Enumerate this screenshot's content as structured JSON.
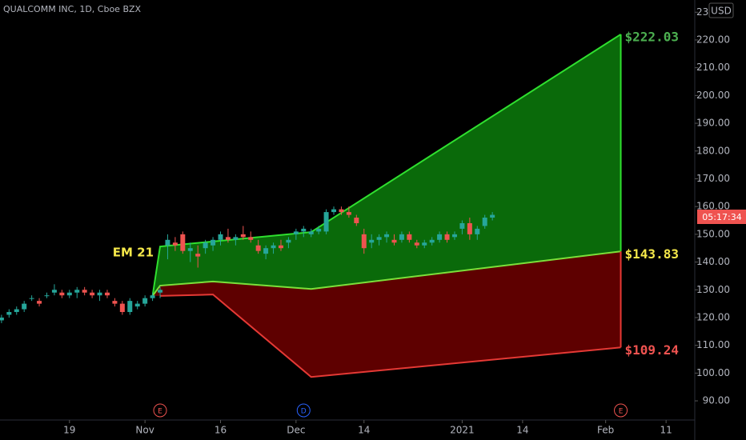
{
  "header": {
    "symbol": "QUALCOMM INC, 1D, Cboe BZX",
    "currency": "USD",
    "countdown": "05:17:34"
  },
  "chart_data": {
    "type": "candlestick",
    "x": [
      -9,
      -8,
      -7,
      -6,
      -5,
      -4,
      -3,
      -2,
      -1,
      0,
      1,
      2,
      3,
      4,
      5,
      6,
      7,
      8,
      9,
      10,
      11,
      12,
      13,
      14,
      15,
      16,
      17,
      18,
      19,
      20,
      21,
      22,
      23,
      24,
      25,
      26,
      27,
      28,
      29,
      30,
      31,
      32,
      33,
      34,
      35,
      36,
      37,
      38,
      39,
      40,
      41,
      42,
      43,
      44,
      45,
      46,
      47,
      48,
      49,
      50,
      51,
      52,
      53,
      54,
      55,
      56
    ],
    "open": [
      119,
      121,
      122,
      123,
      127,
      126,
      128,
      129,
      129,
      128,
      129,
      130,
      129,
      128,
      129,
      126,
      125,
      122,
      124,
      125,
      127,
      129,
      146,
      147,
      150,
      144,
      143,
      145,
      146,
      148,
      149,
      148,
      150,
      149,
      146,
      143,
      145,
      146,
      147,
      150,
      151,
      150,
      151,
      151,
      158,
      159,
      158,
      156,
      150,
      147,
      148,
      149,
      148,
      148,
      150,
      147,
      146,
      147,
      148,
      150,
      149,
      152,
      154,
      150,
      153,
      156
    ],
    "high": [
      121,
      123,
      124,
      126,
      128,
      127,
      129,
      132,
      130,
      130,
      131,
      131,
      130,
      130,
      130,
      127,
      126,
      127,
      126,
      128,
      129,
      131,
      150,
      149,
      151,
      147,
      146,
      148,
      149,
      151,
      152,
      150,
      153,
      151,
      148,
      146,
      147,
      148,
      149,
      152,
      153,
      152,
      153,
      159,
      160,
      160,
      160,
      157,
      152,
      150,
      150,
      151,
      150,
      151,
      151,
      148,
      148,
      149,
      151,
      151,
      151,
      155,
      156,
      153,
      157,
      158
    ],
    "low": [
      118,
      120,
      121,
      122,
      126,
      124,
      127,
      128,
      127,
      127,
      127,
      128,
      127,
      126,
      127,
      124,
      121,
      121,
      123,
      124,
      126,
      127,
      141,
      144,
      143,
      140,
      138,
      143,
      144,
      146,
      147,
      146,
      148,
      147,
      143,
      141,
      143,
      144,
      145,
      148,
      149,
      149,
      150,
      150,
      157,
      157,
      156,
      153,
      143,
      145,
      146,
      147,
      146,
      147,
      147,
      145,
      145,
      146,
      147,
      147,
      148,
      150,
      148,
      148,
      152,
      155
    ],
    "close": [
      120,
      122,
      123,
      125,
      127,
      125,
      128,
      130,
      128,
      129,
      130,
      129,
      128,
      129,
      128,
      125,
      122,
      126,
      125,
      127,
      128,
      130,
      148,
      146,
      144,
      145,
      142,
      147,
      148,
      150,
      148,
      149,
      149,
      148,
      144,
      145,
      146,
      145,
      148,
      151,
      152,
      151,
      152,
      158,
      159,
      158,
      157,
      154,
      145,
      148,
      149,
      150,
      147,
      150,
      148,
      146,
      147,
      148,
      150,
      148,
      150,
      154,
      150,
      152,
      156,
      157
    ],
    "up_color": "#26a69a",
    "down_color": "#ef5350",
    "xlim": [
      -9.2,
      82.8
    ],
    "ylim": [
      83.1,
      234.4
    ],
    "xticks": [
      {
        "value": 0,
        "label": "19"
      },
      {
        "value": 10,
        "label": "Nov"
      },
      {
        "value": 20,
        "label": "16"
      },
      {
        "value": 30,
        "label": "Dec"
      },
      {
        "value": 39,
        "label": "14"
      },
      {
        "value": 52,
        "label": "2021"
      },
      {
        "value": 60,
        "label": "14"
      },
      {
        "value": 71,
        "label": "Feb"
      },
      {
        "value": 79,
        "label": "11"
      }
    ],
    "yticks": [
      {
        "value": 90,
        "label": "90.00"
      },
      {
        "value": 100,
        "label": "100.00"
      },
      {
        "value": 110,
        "label": "110.00"
      },
      {
        "value": 120,
        "label": "120.00"
      },
      {
        "value": 130,
        "label": "130.00"
      },
      {
        "value": 140,
        "label": "140.00"
      },
      {
        "value": 150,
        "label": "150.00"
      },
      {
        "value": 160,
        "label": "160.00"
      },
      {
        "value": 170,
        "label": "170.00"
      },
      {
        "value": 180,
        "label": "180.00"
      },
      {
        "value": 190,
        "label": "190.00"
      },
      {
        "value": 200,
        "label": "200.00"
      },
      {
        "value": 210,
        "label": "210.00"
      },
      {
        "value": 220,
        "label": "220.00"
      },
      {
        "value": 230,
        "label": "230.00"
      }
    ],
    "bands": [
      {
        "color": "#2fe02f",
        "label_color": "#4caf50",
        "x": [
          11,
          12,
          32,
          73
        ],
        "values": [
          127.8,
          145.6,
          150.8,
          222.03
        ],
        "end_label": "$222.03"
      },
      {
        "color": "#7be03a",
        "label_color": "#f5e84a",
        "x": [
          11,
          12,
          19,
          32,
          73
        ],
        "values": [
          127.8,
          131.5,
          133,
          130.3,
          143.83
        ],
        "end_label": "$143.83"
      },
      {
        "color": "#e53935",
        "label_color": "#ef5350",
        "x": [
          12,
          19,
          32,
          73
        ],
        "values": [
          127.8,
          128.3,
          98.6,
          109.24
        ],
        "end_label": "$109.24"
      }
    ],
    "annotation": {
      "text": "EM 21",
      "color": "#f5e84a"
    },
    "events": [
      {
        "x": 12,
        "label": "E",
        "color": "#ef5350"
      },
      {
        "x": 31,
        "label": "D",
        "color": "#2962ff"
      },
      {
        "x": 73,
        "label": "E",
        "color": "#ef5350"
      }
    ]
  }
}
